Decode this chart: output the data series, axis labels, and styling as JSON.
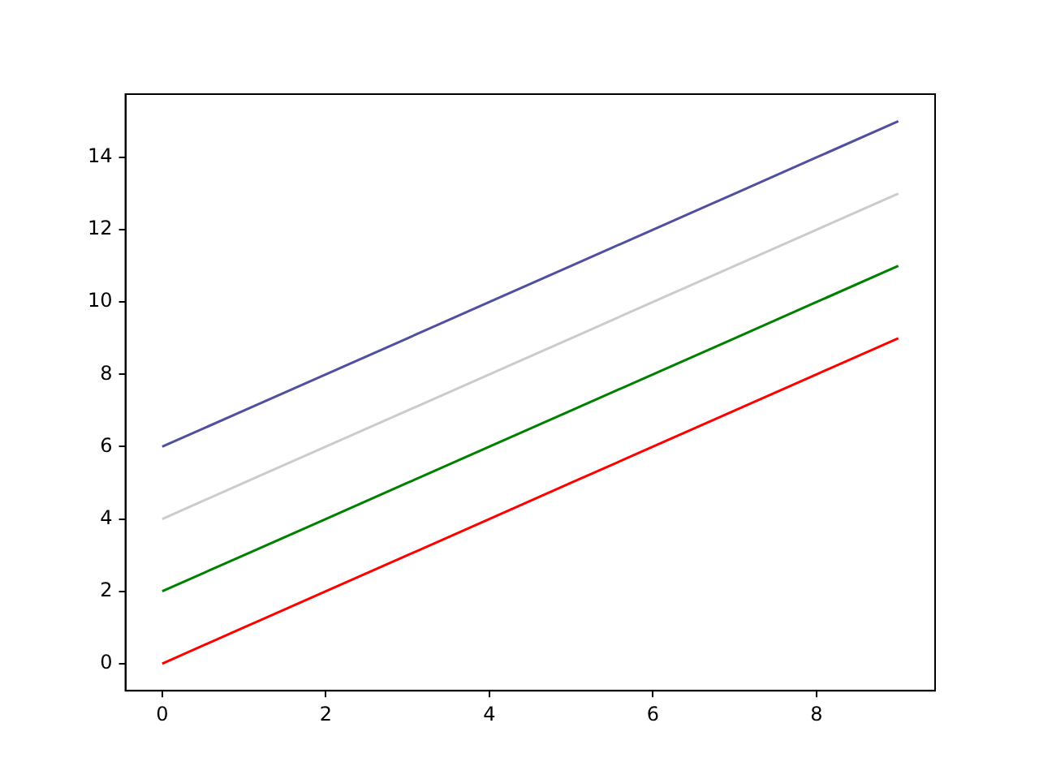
{
  "chart_data": {
    "type": "line",
    "x": [
      0,
      1,
      2,
      3,
      4,
      5,
      6,
      7,
      8,
      9
    ],
    "series": [
      {
        "color": "#ff0000",
        "values": [
          0,
          1,
          2,
          3,
          4,
          5,
          6,
          7,
          8,
          9
        ]
      },
      {
        "color": "#008000",
        "values": [
          2,
          3,
          4,
          5,
          6,
          7,
          8,
          9,
          10,
          11
        ]
      },
      {
        "color": "#cccccc",
        "values": [
          4,
          5,
          6,
          7,
          8,
          9,
          10,
          11,
          12,
          13
        ]
      },
      {
        "color": "#5050a0",
        "values": [
          6,
          7,
          8,
          9,
          10,
          11,
          12,
          13,
          14,
          15
        ]
      }
    ],
    "xlim": [
      -0.45,
      9.45
    ],
    "xticks": [
      0,
      2,
      4,
      6,
      8
    ],
    "ylim": [
      -0.75,
      15.75
    ],
    "yticks": [
      0,
      2,
      4,
      6,
      8,
      10,
      12,
      14
    ],
    "grid": false,
    "legend": false,
    "marker": "none",
    "line_style": "solid"
  }
}
